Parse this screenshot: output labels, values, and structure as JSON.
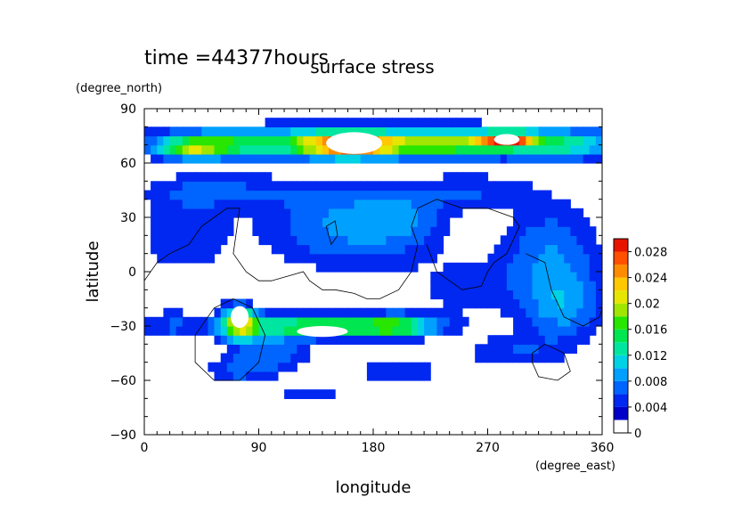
{
  "chart_data": {
    "type": "heatmap",
    "title": "surface stress",
    "time_label": "time =44377hours",
    "xlabel": "longitude",
    "ylabel": "latitude",
    "x_unit": "(degree_east)",
    "y_unit": "(degree_north)",
    "xlim": [
      0,
      360
    ],
    "ylim": [
      -90,
      90
    ],
    "x_ticks": [
      "0",
      "90",
      "180",
      "270",
      "360"
    ],
    "y_ticks": [
      "90",
      "60",
      "30",
      "0",
      "−30",
      "−60",
      "−90"
    ],
    "x_tick_values": [
      0,
      90,
      180,
      270,
      360
    ],
    "y_tick_values": [
      90,
      60,
      30,
      0,
      -30,
      -60,
      -90
    ],
    "colorbar": {
      "min": 0,
      "max": 0.03,
      "labels": [
        "0.028",
        "0.024",
        "0.02",
        "0.016",
        "0.012",
        "0.008",
        "0.004",
        "0"
      ],
      "label_values": [
        0.028,
        0.024,
        0.02,
        0.016,
        0.012,
        0.008,
        0.004,
        0
      ],
      "colors": [
        "#ffffff",
        "#0000c8",
        "#0028f0",
        "#0064ff",
        "#00a0ff",
        "#00d2e6",
        "#00e6a0",
        "#00e650",
        "#28e600",
        "#a0e600",
        "#e6e600",
        "#ffc800",
        "#ff8c00",
        "#ff5000",
        "#e61400"
      ]
    },
    "features": [
      {
        "name": "northern polar band",
        "lon": [
          10,
          360
        ],
        "lat": [
          58,
          85
        ],
        "value": 0.014
      },
      {
        "name": "northern jet maximum",
        "lon": [
          115,
          205
        ],
        "lat": [
          62,
          80
        ],
        "value": 0.03
      },
      {
        "name": "northern maximum",
        "lon": [
          270,
          305
        ],
        "lat": [
          68,
          78
        ],
        "value": 0.03
      },
      {
        "name": "northern maximum",
        "lon": [
          30,
          60
        ],
        "lat": [
          65,
          75
        ],
        "value": 0.018
      },
      {
        "name": "southern jet maximum",
        "lon": [
          70,
          215
        ],
        "lat": [
          -40,
          -20
        ],
        "value": 0.022
      },
      {
        "name": "southern maximum",
        "lon": [
          65,
          85
        ],
        "lat": [
          -38,
          -20
        ],
        "value": 0.03
      },
      {
        "name": "tropical field",
        "lon": [
          0,
          360
        ],
        "lat": [
          -60,
          40
        ],
        "value": 0.006
      }
    ]
  }
}
